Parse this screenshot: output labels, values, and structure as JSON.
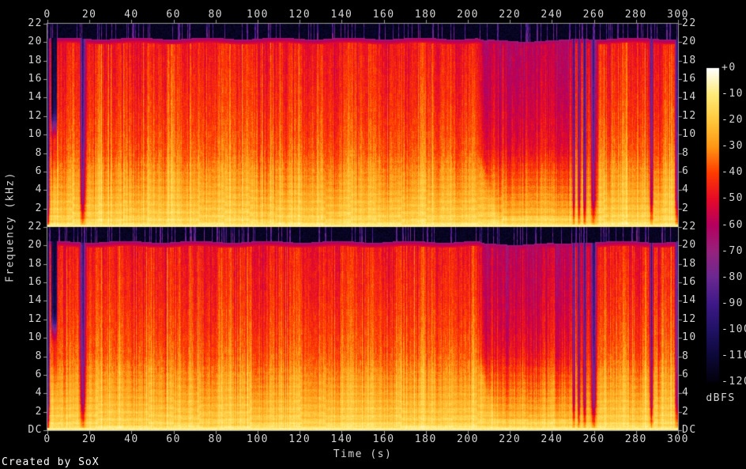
{
  "page": {
    "background": "#000000",
    "credit": "Created by SoX",
    "label_color": "#d4d4d4",
    "axis_color": "#9a9a9a"
  },
  "chart_data": {
    "type": "heatmap",
    "subtype": "audio-spectrogram-stereo",
    "title": "",
    "xlabel": "Time (s)",
    "ylabel": "Frequency (kHz)",
    "x_axis": {
      "min_s": 0,
      "max_s": 300,
      "tick_interval_s": 20,
      "tick_labels": [
        "0",
        "20",
        "40",
        "60",
        "80",
        "100",
        "120",
        "140",
        "160",
        "180",
        "200",
        "220",
        "240",
        "260",
        "280",
        "300"
      ]
    },
    "y_axis": {
      "min_khz": 0,
      "max_khz": 22,
      "tick_interval_khz": 2,
      "tick_labels_top_to_bottom": [
        "22",
        "20",
        "18",
        "16",
        "14",
        "12",
        "10",
        "8",
        "6",
        "4",
        "2"
      ],
      "dc_label": "DC"
    },
    "channels": [
      {
        "index": 0,
        "position": "top"
      },
      {
        "index": 1,
        "position": "bottom"
      }
    ],
    "colorbar": {
      "label": "dBFS",
      "max_db": 0,
      "min_db": -120,
      "tick_interval_db": 10,
      "tick_labels": [
        "+0",
        "-10",
        "-20",
        "-30",
        "-40",
        "-50",
        "-60",
        "-70",
        "-80",
        "-90",
        "-100",
        "-110",
        "-120"
      ],
      "palette_stops": [
        {
          "db": 0,
          "rgb": [
            255,
            255,
            255
          ]
        },
        {
          "db": -10,
          "rgb": [
            255,
            235,
            120
          ]
        },
        {
          "db": -20,
          "rgb": [
            255,
            200,
            60
          ]
        },
        {
          "db": -30,
          "rgb": [
            255,
            150,
            20
          ]
        },
        {
          "db": -40,
          "rgb": [
            255,
            60,
            0
          ]
        },
        {
          "db": -50,
          "rgb": [
            230,
            10,
            40
          ]
        },
        {
          "db": -60,
          "rgb": [
            180,
            0,
            95
          ]
        },
        {
          "db": -70,
          "rgb": [
            150,
            35,
            125
          ]
        },
        {
          "db": -80,
          "rgb": [
            106,
            40,
            145
          ]
        },
        {
          "db": -90,
          "rgb": [
            62,
            25,
            135
          ]
        },
        {
          "db": -100,
          "rgb": [
            32,
            18,
            100
          ]
        },
        {
          "db": -110,
          "rgb": [
            12,
            8,
            56
          ]
        },
        {
          "db": -120,
          "rgb": [
            2,
            1,
            10
          ]
        }
      ]
    },
    "features": {
      "lowpass_cutoff_khz": 20.4,
      "dc_line_level_db": -7,
      "body_level_profile_db": [
        [
          0,
          -8
        ],
        [
          0.5,
          -15
        ],
        [
          1,
          -18
        ],
        [
          2,
          -21
        ],
        [
          4,
          -26
        ],
        [
          6,
          -30
        ],
        [
          8,
          -36
        ],
        [
          11,
          -40
        ],
        [
          14,
          -43
        ],
        [
          17,
          -45
        ],
        [
          20,
          -47
        ],
        [
          20.4,
          -48.5
        ],
        [
          22,
          -48.5
        ]
      ],
      "silences_s": [
        {
          "t": 0.4,
          "sigma": 0.5,
          "depth_db": 50
        },
        {
          "t": 16.8,
          "sigma": 0.8,
          "depth_db": 46
        },
        {
          "t": 250.4,
          "sigma": 0.45,
          "depth_db": 44
        },
        {
          "t": 252.9,
          "sigma": 0.4,
          "depth_db": 44
        },
        {
          "t": 255.6,
          "sigma": 0.5,
          "depth_db": 46
        },
        {
          "t": 259.9,
          "sigma": 0.9,
          "depth_db": 50
        },
        {
          "t": 287.4,
          "sigma": 0.5,
          "depth_db": 46
        },
        {
          "t": 299.6,
          "sigma": 0.7,
          "depth_db": 48
        }
      ],
      "partial_silence_start": {
        "t_start": 1.6,
        "t_end": 4.9,
        "above_khz": 9,
        "depth_db": 55
      },
      "quiet_section": {
        "t_start": 204,
        "t_end": 250,
        "max_attenuation_db": 13
      },
      "spike_column_density": 0.1
    }
  }
}
